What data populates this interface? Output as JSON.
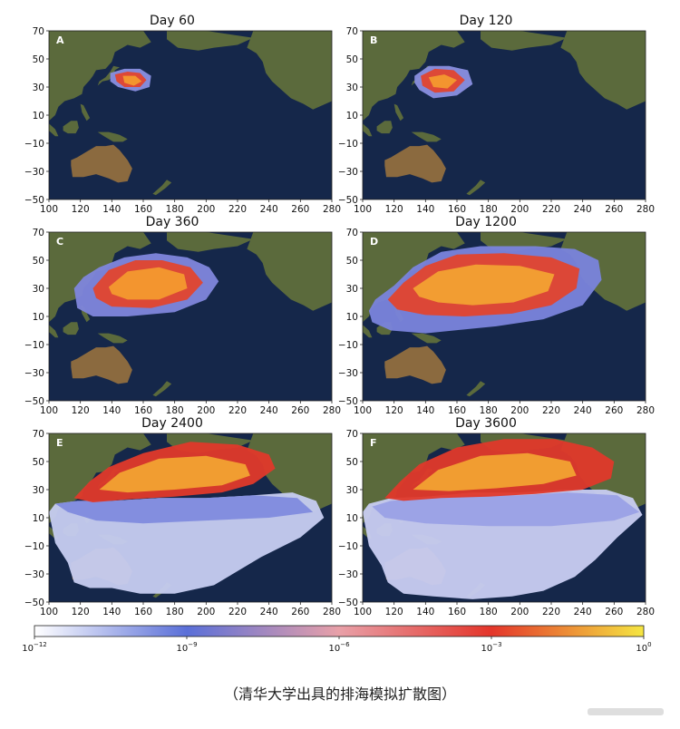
{
  "chart_data": {
    "type": "heatmap",
    "panels": [
      {
        "letter": "A",
        "title": "Day 60"
      },
      {
        "letter": "B",
        "title": "Day 120"
      },
      {
        "letter": "C",
        "title": "Day 360"
      },
      {
        "letter": "D",
        "title": "Day 1200"
      },
      {
        "letter": "E",
        "title": "Day 2400"
      },
      {
        "letter": "F",
        "title": "Day 3600"
      }
    ],
    "x_ticks": [
      "100",
      "120",
      "140",
      "160",
      "180",
      "200",
      "220",
      "240",
      "260",
      "280"
    ],
    "y_ticks": [
      "70",
      "50",
      "30",
      "10",
      "−10",
      "−30",
      "−50"
    ],
    "xlim": [
      100,
      280
    ],
    "ylim": [
      -50,
      70
    ],
    "colorbar": {
      "scale": "log",
      "range": [
        1e-12,
        1
      ],
      "ticks": [
        {
          "base": "10",
          "exp": "−12"
        },
        {
          "base": "10",
          "exp": "−9"
        },
        {
          "base": "10",
          "exp": "−6"
        },
        {
          "base": "10",
          "exp": "−3"
        },
        {
          "base": "10",
          "exp": "0"
        }
      ],
      "colors": [
        "#ffffff",
        "#5a6fd8",
        "#e8a0a8",
        "#e4352a",
        "#f5e642"
      ]
    }
  },
  "caption": "（清华大学出具的排海模拟扩散图）",
  "colors": {
    "ocean": "#15274a",
    "land": "#5b6a3c",
    "desert": "#8b6a3f"
  }
}
